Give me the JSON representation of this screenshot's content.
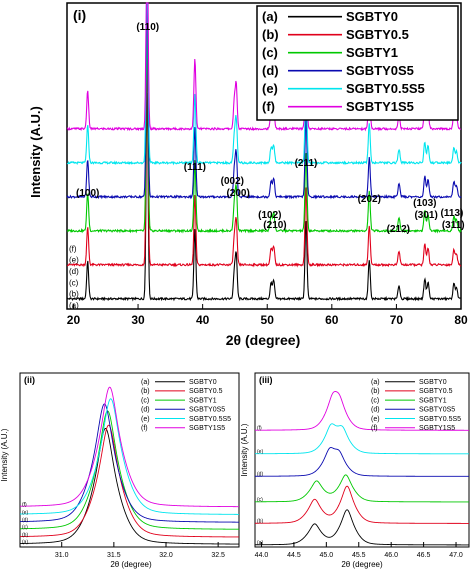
{
  "figure": {
    "legend_labels": [
      "SGBTY0",
      "SGBTY0.5",
      "SGBTY1",
      "SGBTY0S5",
      "SGBTY0.5S5",
      "SGBTY1S5"
    ],
    "legend_letters": [
      "(a)",
      "(b)",
      "(c)",
      "(d)",
      "(e)",
      "(f)"
    ],
    "colors": [
      "#000000",
      "#e0001b",
      "#00c800",
      "#0a0ab0",
      "#00e5ee",
      "#e000e0"
    ]
  },
  "chart_data": [
    {
      "panel": "(i)",
      "type": "line",
      "xlabel": "2θ (degree)",
      "ylabel": "Intensity (A.U.)",
      "xlim": [
        19,
        80
      ],
      "xticks": [
        20,
        30,
        40,
        50,
        60,
        70,
        80
      ],
      "offsets": [
        0,
        1,
        2,
        3,
        4,
        5
      ],
      "base_offset": 0,
      "step": 1,
      "baseline_noise": 0.06,
      "peaks": [
        {
          "x": 22.2,
          "h": 3.3,
          "label": "(100)",
          "w": 0.15
        },
        {
          "x": 31.4,
          "h": 18.5,
          "label": "(110)",
          "w": 0.15
        },
        {
          "x": 38.8,
          "h": 6.2,
          "label": "(111)",
          "w": 0.15
        },
        {
          "x": 44.9,
          "h": 2.3,
          "label": "(002)",
          "w": 0.15
        },
        {
          "x": 45.2,
          "h": 3.8,
          "label": "(200)",
          "w": 0.15
        },
        {
          "x": 50.6,
          "h": 1.4,
          "label": "(102)",
          "w": 0.15
        },
        {
          "x": 51.0,
          "h": 1.6,
          "label": "(210)",
          "w": 0.15
        },
        {
          "x": 56.0,
          "h": 7.0,
          "label": "(211)",
          "w": 0.15
        },
        {
          "x": 65.8,
          "h": 3.5,
          "label": "(202)",
          "w": 0.15
        },
        {
          "x": 70.4,
          "h": 1.2,
          "label": "(212)",
          "w": 0.15
        },
        {
          "x": 74.4,
          "h": 1.8,
          "label": "(103)",
          "w": 0.15
        },
        {
          "x": 74.9,
          "h": 1.5,
          "label": "(301)",
          "w": 0.15
        },
        {
          "x": 78.9,
          "h": 1.3,
          "label": "(113)",
          "w": 0.15
        },
        {
          "x": 79.3,
          "h": 1.0,
          "label": "(311)",
          "w": 0.15
        }
      ],
      "ylim": [
        0,
        27
      ]
    },
    {
      "panel": "(ii)",
      "type": "line",
      "xlabel": "2θ (degree)",
      "ylabel": "Intensity (A.U.)",
      "xlim": [
        30.6,
        32.7
      ],
      "xticks": [
        31.0,
        31.5,
        32.0,
        32.5
      ],
      "tick_format": 1,
      "centers": [
        31.42,
        31.45,
        31.44,
        31.41,
        31.47,
        31.46
      ],
      "heights": [
        9.0,
        8.7,
        9.2,
        9.2,
        9.0,
        9.3
      ],
      "width": 0.09,
      "offsets": [
        0.2,
        0.75,
        1.35,
        1.9,
        2.5,
        3.1
      ],
      "base_offset": 0.2,
      "step": 0.57,
      "ylim": [
        0,
        13.5
      ]
    },
    {
      "panel": "(iii)",
      "type": "line",
      "xlabel": "2θ (degree)",
      "ylabel": "Intensity (A.U.)",
      "xlim": [
        43.9,
        47.2
      ],
      "xticks": [
        44.0,
        44.5,
        45.0,
        45.5,
        46.0,
        46.5,
        47.0
      ],
      "tick_format": 1,
      "peak_pairs": [
        [
          {
            "x": 44.82,
            "h": 2.0
          },
          {
            "x": 45.32,
            "h": 3.4
          }
        ],
        [
          {
            "x": 44.82,
            "h": 2.3
          },
          {
            "x": 45.32,
            "h": 3.6
          }
        ],
        [
          {
            "x": 44.85,
            "h": 2.0
          },
          {
            "x": 45.3,
            "h": 2.6
          }
        ],
        [
          {
            "x": 45.05,
            "h": 2.1
          },
          {
            "x": 45.2,
            "h": 1.7
          }
        ],
        [
          {
            "x": 45.07,
            "h": 2.3
          },
          {
            "x": 45.25,
            "h": 2.0
          }
        ],
        [
          {
            "x": 45.1,
            "h": 2.4
          },
          {
            "x": 45.2,
            "h": 2.1
          }
        ]
      ],
      "width": 0.09,
      "offsets": [
        0.2,
        2.3,
        4.4,
        6.9,
        9.1,
        11.4
      ],
      "base_offset": 0.2,
      "step": 2.2,
      "ylim": [
        0,
        17
      ]
    }
  ]
}
